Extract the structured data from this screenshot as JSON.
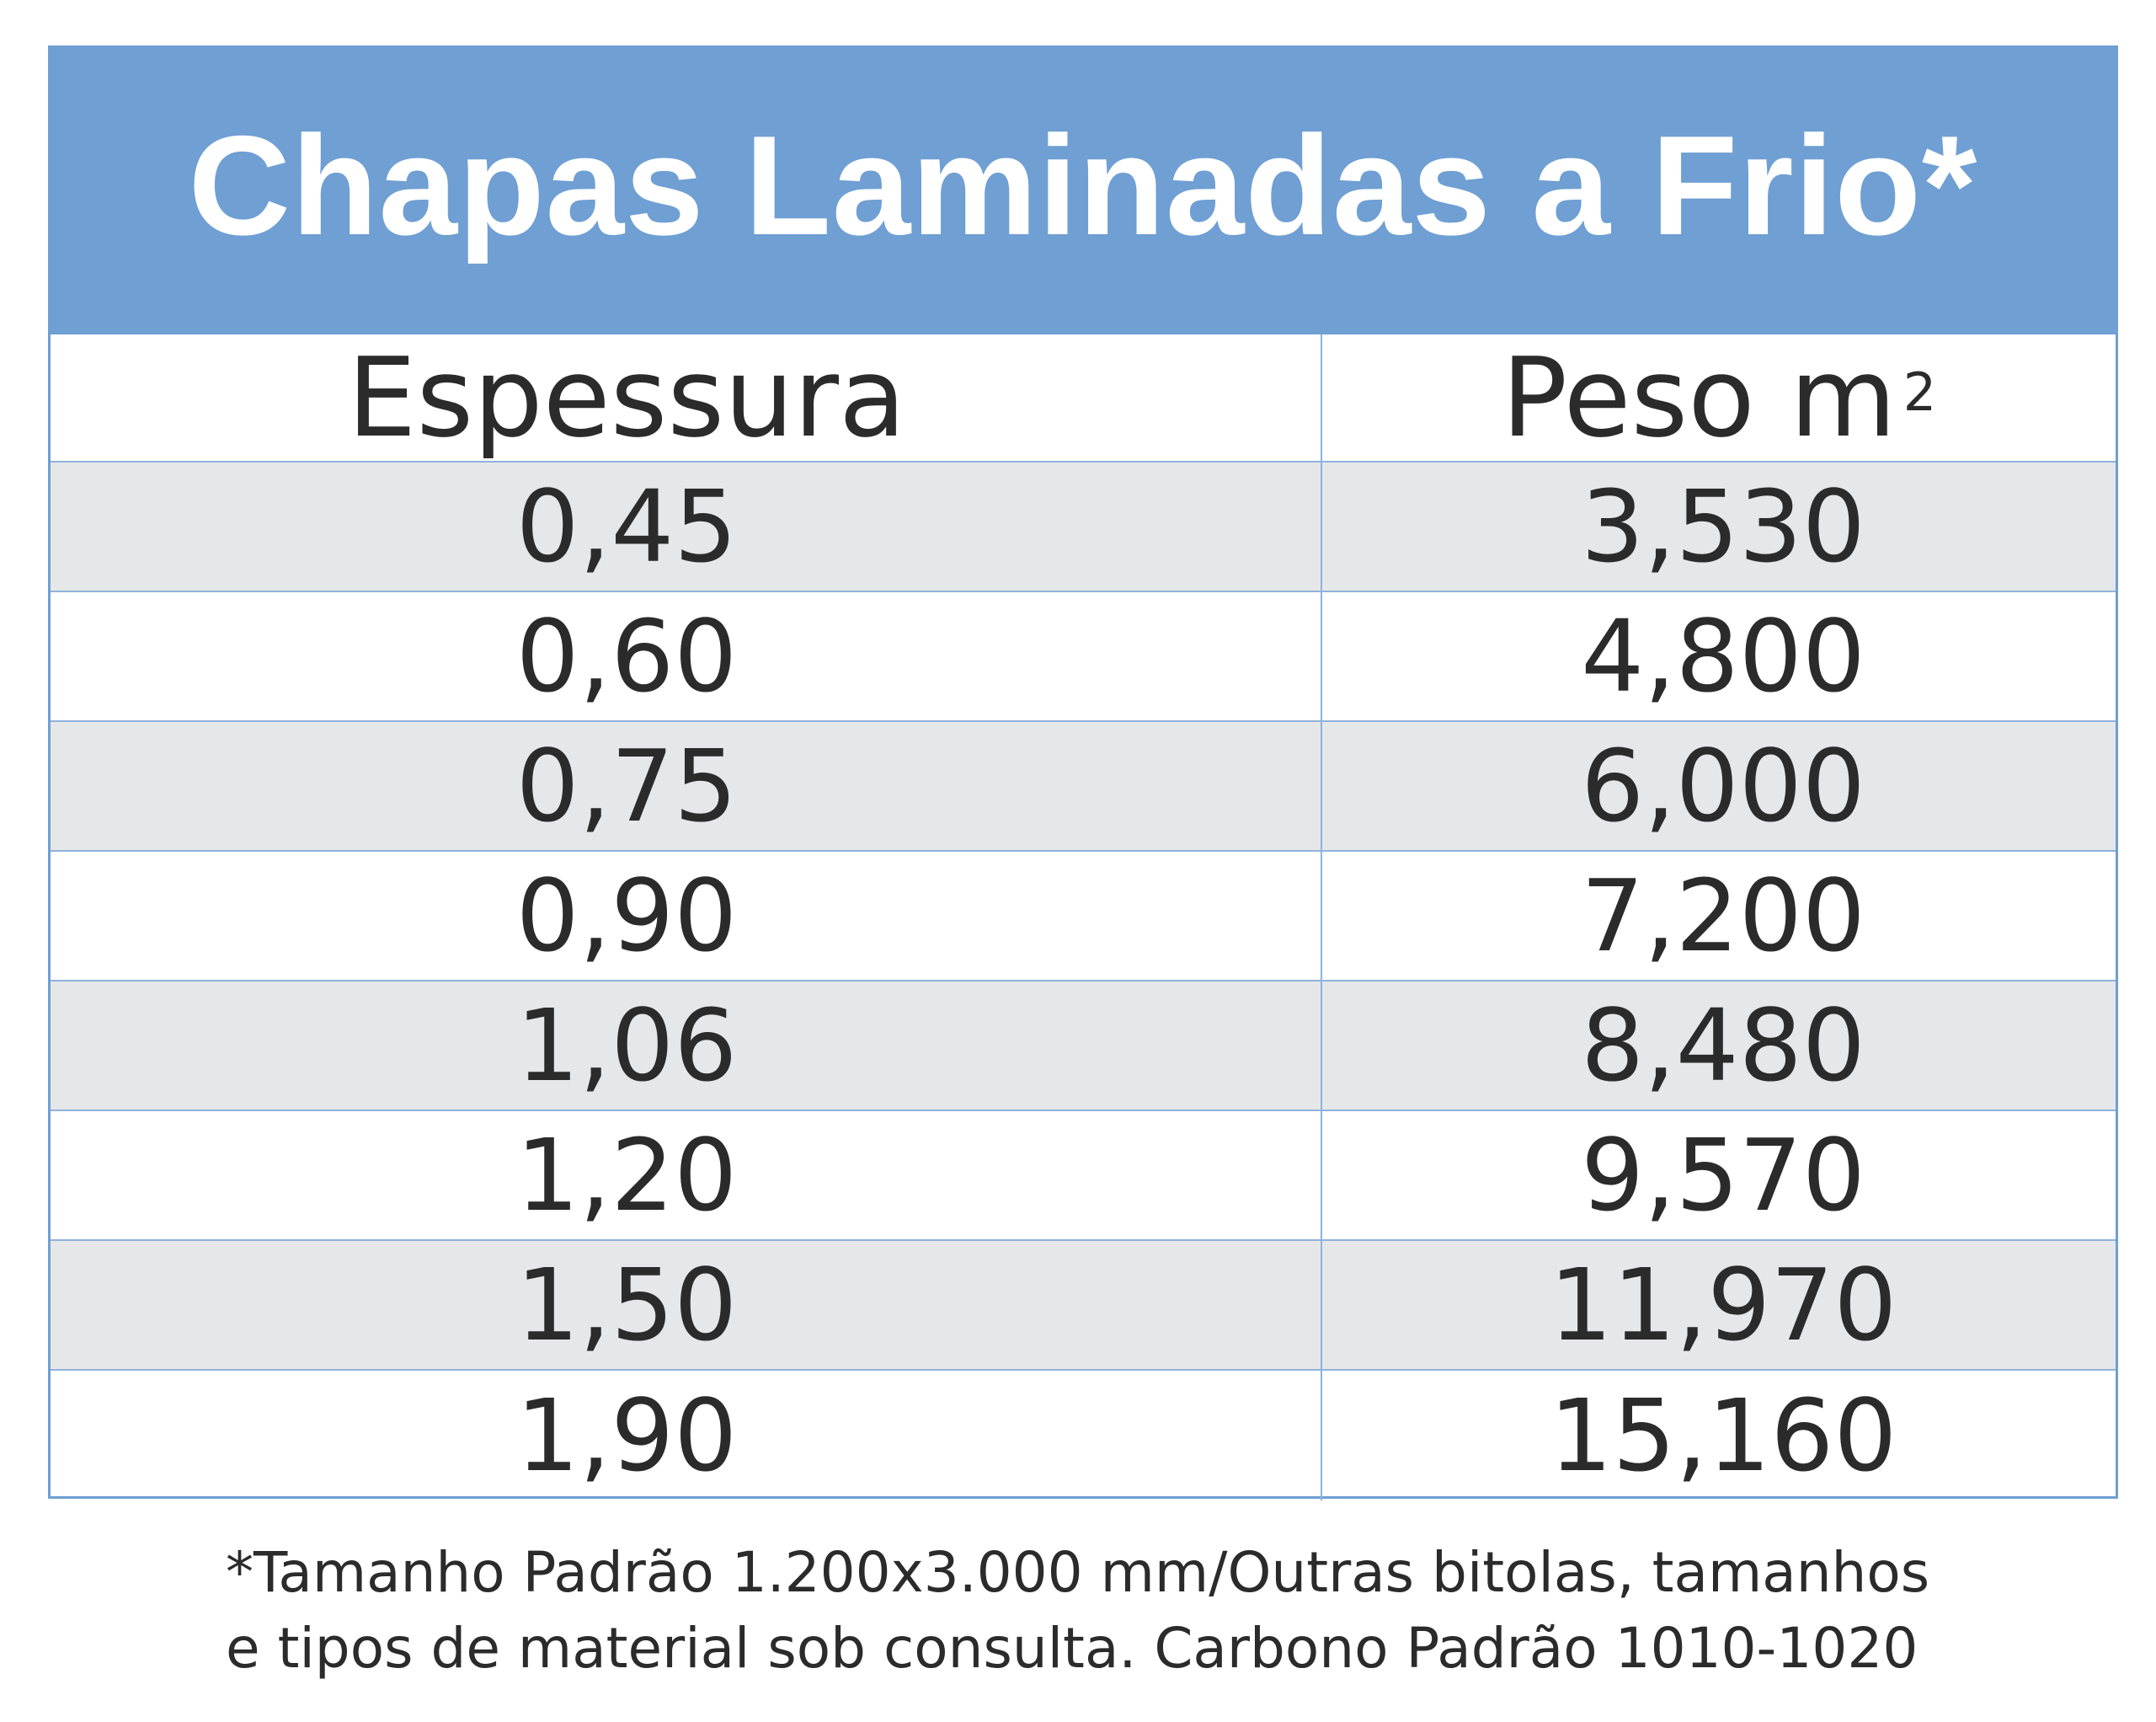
{
  "title": "Chapas Laminadas a Frio*",
  "headers": {
    "thickness": "Espessura",
    "weight_base": "Peso m",
    "weight_sup": "2"
  },
  "rows": [
    {
      "thickness": "0,45",
      "weight": "3,530"
    },
    {
      "thickness": "0,60",
      "weight": "4,800"
    },
    {
      "thickness": "0,75",
      "weight": "6,000"
    },
    {
      "thickness": "0,90",
      "weight": "7,200"
    },
    {
      "thickness": "1,06",
      "weight": "8,480"
    },
    {
      "thickness": "1,20",
      "weight": "9,570"
    },
    {
      "thickness": "1,50",
      "weight": "11,970"
    },
    {
      "thickness": "1,90",
      "weight": "15,160"
    }
  ],
  "footnote": {
    "line1": "*Tamanho Padrão 1.200x3.000 mm/Outras bitolas, tamanhos",
    "line2": "e tipos de material sob consulta. Carbono Padrão 1010-1020"
  },
  "colors": {
    "title_bg": "#6f9fd3",
    "shaded_row": "#e6e7e9",
    "grid_line": "#8fb2dc"
  }
}
